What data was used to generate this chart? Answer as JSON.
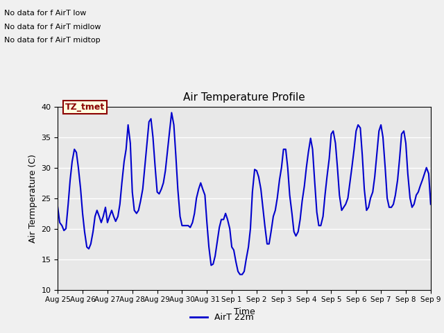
{
  "title": "Air Temperature Profile",
  "xlabel": "Time",
  "ylabel": "Air Termperature (C)",
  "ylim": [
    10,
    40
  ],
  "line_color": "#0000CC",
  "line_width": 1.5,
  "fig_bg_color": "#f0f0f0",
  "plot_bg_color": "#e8e8e8",
  "annotation_texts": [
    "No data for f AirT low",
    "No data for f AirT midlow",
    "No data for f AirT midtop"
  ],
  "annotation_box_text": "TZ_tmet",
  "legend_label": "AirT 22m",
  "tick_labels": [
    "Aug 25",
    "Aug 26",
    "Aug 27",
    "Aug 28",
    "Aug 29",
    "Aug 30",
    "Aug 31",
    "Sep 1",
    "Sep 2",
    "Sep 3",
    "Sep 4",
    "Sep 5",
    "Sep 6",
    "Sep 7",
    "Sep 8",
    "Sep 9"
  ],
  "x_data": [
    0.0,
    0.08,
    0.17,
    0.25,
    0.33,
    0.42,
    0.5,
    0.58,
    0.67,
    0.75,
    0.83,
    0.92,
    1.0,
    1.08,
    1.17,
    1.25,
    1.33,
    1.42,
    1.5,
    1.58,
    1.67,
    1.75,
    1.83,
    1.92,
    2.0,
    2.08,
    2.17,
    2.25,
    2.33,
    2.42,
    2.5,
    2.58,
    2.67,
    2.75,
    2.83,
    2.92,
    3.0,
    3.08,
    3.17,
    3.25,
    3.33,
    3.42,
    3.5,
    3.58,
    3.67,
    3.75,
    3.83,
    3.92,
    4.0,
    4.08,
    4.17,
    4.25,
    4.33,
    4.42,
    4.5,
    4.58,
    4.67,
    4.75,
    4.83,
    4.92,
    5.0,
    5.08,
    5.17,
    5.25,
    5.33,
    5.42,
    5.5,
    5.58,
    5.67,
    5.75,
    5.83,
    5.92,
    6.0,
    6.08,
    6.17,
    6.25,
    6.33,
    6.42,
    6.5,
    6.58,
    6.67,
    6.75,
    6.83,
    6.92,
    7.0,
    7.08,
    7.17,
    7.25,
    7.33,
    7.42,
    7.5,
    7.58,
    7.67,
    7.75,
    7.83,
    7.92,
    8.0,
    8.08,
    8.17,
    8.25,
    8.33,
    8.42,
    8.5,
    8.58,
    8.67,
    8.75,
    8.83,
    8.92,
    9.0,
    9.08,
    9.17,
    9.25,
    9.33,
    9.42,
    9.5,
    9.58,
    9.67,
    9.75,
    9.83,
    9.92,
    10.0,
    10.08,
    10.17,
    10.25,
    10.33,
    10.42,
    10.5,
    10.58,
    10.67,
    10.75,
    10.83,
    10.92,
    11.0,
    11.08,
    11.17,
    11.25,
    11.33,
    11.42,
    11.5,
    11.58,
    11.67,
    11.75,
    11.83,
    11.92,
    12.0,
    12.08,
    12.17,
    12.25,
    12.33,
    12.42,
    12.5,
    12.58,
    12.67,
    12.75,
    12.83,
    12.92,
    13.0,
    13.08,
    13.17,
    13.25,
    13.33,
    13.42,
    13.5,
    13.58,
    13.67,
    13.75,
    13.83,
    13.92,
    14.0,
    14.08,
    14.17,
    14.25,
    14.33,
    14.42,
    14.5,
    14.58,
    14.67,
    14.75,
    14.83,
    14.92,
    15.0
  ],
  "y_data": [
    23.5,
    21.0,
    20.5,
    19.7,
    20.0,
    24.0,
    28.0,
    31.0,
    33.0,
    32.5,
    30.0,
    26.5,
    22.5,
    19.5,
    17.0,
    16.7,
    17.5,
    19.5,
    22.0,
    23.0,
    22.0,
    21.0,
    22.0,
    23.5,
    21.0,
    22.0,
    23.0,
    22.0,
    21.2,
    22.0,
    24.0,
    27.5,
    31.0,
    33.0,
    37.0,
    34.0,
    26.0,
    23.0,
    22.5,
    23.0,
    24.5,
    26.5,
    30.0,
    33.5,
    37.5,
    38.0,
    35.0,
    30.0,
    26.0,
    25.7,
    26.5,
    27.5,
    29.5,
    33.0,
    36.0,
    39.0,
    37.0,
    32.0,
    26.5,
    22.0,
    20.5,
    20.5,
    20.5,
    20.5,
    20.2,
    21.0,
    22.5,
    25.0,
    26.5,
    27.5,
    26.5,
    25.5,
    21.0,
    17.0,
    14.0,
    14.2,
    15.5,
    18.0,
    20.2,
    21.5,
    21.5,
    22.5,
    21.5,
    20.0,
    17.0,
    16.5,
    14.5,
    13.0,
    12.5,
    12.5,
    13.0,
    15.0,
    17.0,
    20.0,
    26.0,
    29.7,
    29.5,
    28.5,
    26.5,
    23.5,
    20.5,
    17.5,
    17.5,
    19.5,
    22.0,
    23.0,
    25.0,
    28.0,
    30.0,
    33.0,
    33.0,
    30.0,
    25.5,
    22.5,
    19.5,
    18.8,
    19.5,
    21.5,
    24.5,
    27.0,
    30.0,
    32.5,
    34.8,
    33.0,
    28.0,
    22.7,
    20.5,
    20.5,
    22.0,
    25.5,
    28.5,
    31.5,
    35.5,
    36.0,
    34.0,
    30.0,
    25.5,
    23.0,
    23.5,
    24.0,
    25.0,
    27.5,
    30.0,
    33.0,
    36.0,
    37.0,
    36.5,
    32.0,
    26.5,
    23.0,
    23.5,
    25.0,
    26.0,
    28.5,
    32.0,
    36.0,
    37.0,
    35.0,
    30.0,
    25.0,
    23.5,
    23.5,
    24.0,
    25.5,
    28.0,
    31.5,
    35.5,
    36.0,
    34.0,
    29.0,
    25.0,
    23.5,
    24.0,
    25.5,
    26.0,
    27.0,
    28.0,
    29.0,
    30.0,
    29.0,
    24.0
  ]
}
